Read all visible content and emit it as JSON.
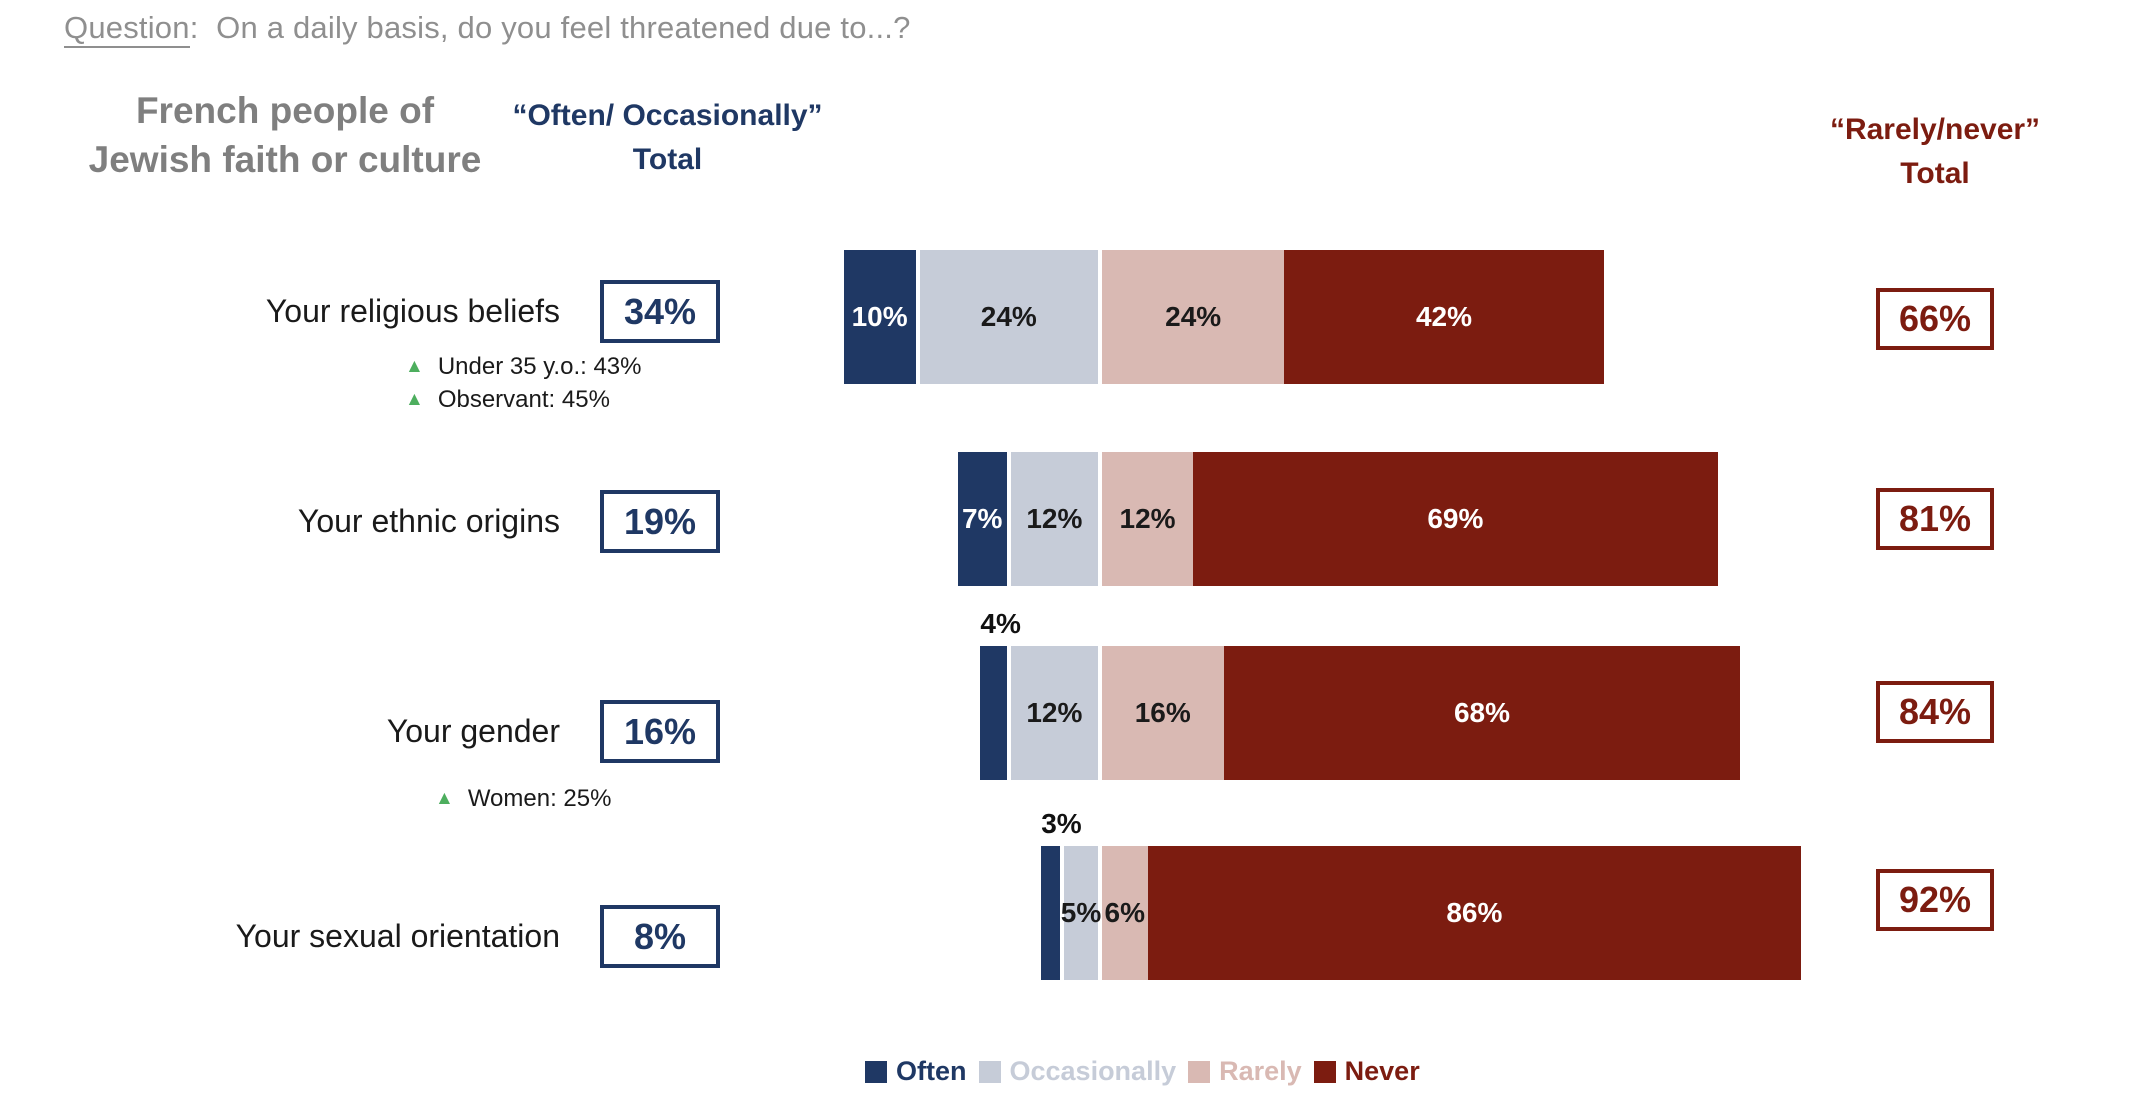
{
  "question": {
    "label": "Question",
    "colon": ":",
    "text": "On a daily basis, do you feel threatened due to...?"
  },
  "headers": {
    "population": "French people of\nJewish faith or culture",
    "left_total": "“Often/ Occasionally”\nTotal",
    "right_total": "“Rarely/never”\nTotal"
  },
  "colors": {
    "often": "#1F3864",
    "occasionally": "#C6CCD8",
    "rarely": "#D9B9B3",
    "never": "#7C1C10",
    "navy_accent": "#1F3864",
    "red_accent": "#7C1C10",
    "title_gray": "#7F7F7F",
    "green_marker": "#4DAE5E"
  },
  "rows": [
    {
      "label": "Your religious beliefs",
      "left_total": "34%",
      "right_total": "66%",
      "annotations": [
        "Under 35 y.o.: 43%",
        "Observant: 45%"
      ]
    },
    {
      "label": "Your ethnic origins",
      "left_total": "19%",
      "right_total": "81%",
      "annotations": []
    },
    {
      "label": "Your gender",
      "left_total": "16%",
      "right_total": "84%",
      "annotations": [
        "Women: 25%"
      ]
    },
    {
      "label": "Your sexual orientation",
      "left_total": "8%",
      "right_total": "92%",
      "annotations": []
    }
  ],
  "legend": [
    {
      "label": "Often",
      "color_key": "often"
    },
    {
      "label": "Occasionally",
      "color_key": "occasionally"
    },
    {
      "label": "Rarely",
      "color_key": "rarely"
    },
    {
      "label": "Never",
      "color_key": "never"
    }
  ],
  "chart_data": {
    "type": "bar",
    "subtype": "horizontal-diverging-stacked",
    "unit": "%",
    "title": "On a daily basis, do you feel threatened due to...?",
    "population": "French people of Jewish faith or culture",
    "categories": [
      "Your religious beliefs",
      "Your ethnic origins",
      "Your gender",
      "Your sexual orientation"
    ],
    "series": [
      {
        "name": "Often",
        "values": [
          10,
          7,
          4,
          3
        ]
      },
      {
        "name": "Occasionally",
        "values": [
          24,
          12,
          12,
          5
        ]
      },
      {
        "name": "Rarely",
        "values": [
          24,
          12,
          16,
          6
        ]
      },
      {
        "name": "Never",
        "values": [
          42,
          69,
          68,
          86
        ]
      }
    ],
    "often_occasionally_total": [
      34,
      19,
      16,
      8
    ],
    "rarely_never_total": [
      66,
      81,
      84,
      92
    ],
    "annotations": [
      {
        "category": "Your religious beliefs",
        "notes": [
          "Under 35 y.o.: 43%",
          "Observant: 45%"
        ]
      },
      {
        "category": "Your gender",
        "notes": [
          "Women: 25%"
        ]
      }
    ],
    "legend_position": "bottom",
    "alignment": "bars aligned at the Occasionally/Rarely divergence point"
  }
}
